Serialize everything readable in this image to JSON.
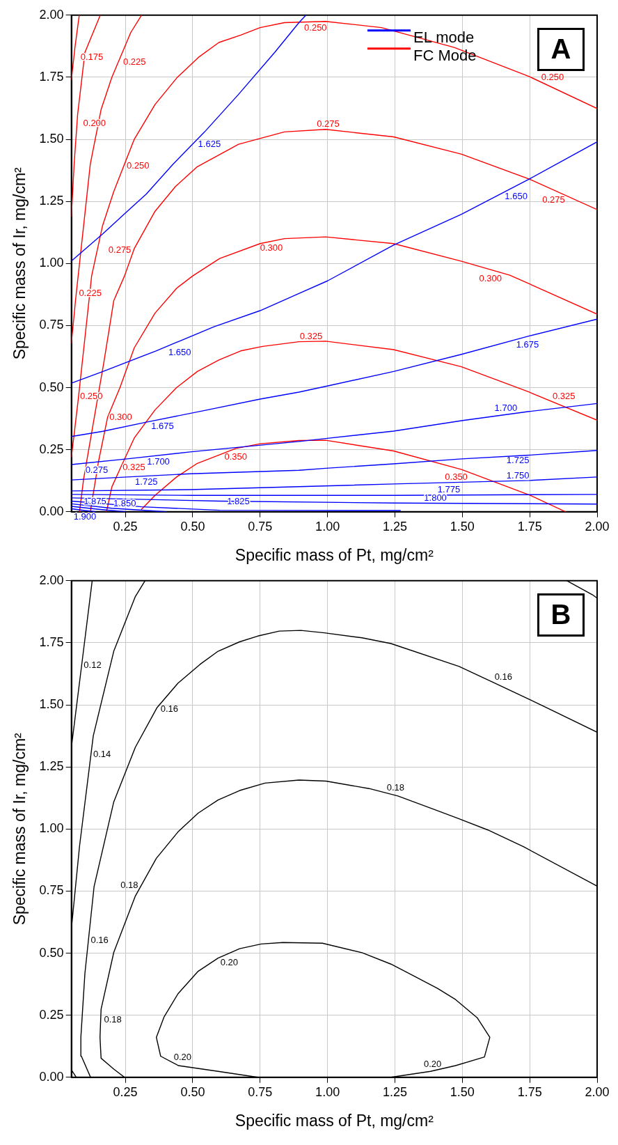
{
  "chart_data": [
    {
      "type": "line",
      "xlabel": "Specific mass of Pt, mg/cm²",
      "ylabel": "Specific mass of Ir, mg/cm²",
      "xlim": [
        0.05,
        2.0
      ],
      "ylim": [
        0,
        2.0
      ],
      "xticks": [
        {
          "value": 0.25,
          "label": "0.25"
        },
        {
          "value": 0.5,
          "label": "0.50"
        },
        {
          "value": 0.75,
          "label": "0.75"
        },
        {
          "value": 1.0,
          "label": "1.00"
        },
        {
          "value": 1.25,
          "label": "1.25"
        },
        {
          "value": 1.5,
          "label": "1.50"
        },
        {
          "value": 1.75,
          "label": "1.75"
        },
        {
          "value": 2.0,
          "label": "2.00"
        }
      ],
      "yticks": [
        {
          "value": 0,
          "label": "0.00"
        },
        {
          "value": 0.25,
          "label": "0.25"
        },
        {
          "value": 0.5,
          "label": "0.50"
        },
        {
          "value": 0.75,
          "label": "0.75"
        },
        {
          "value": 1.0,
          "label": "1.00"
        },
        {
          "value": 1.25,
          "label": "1.25"
        },
        {
          "value": 1.5,
          "label": "1.50"
        },
        {
          "value": 1.75,
          "label": "1.75"
        },
        {
          "value": 2.0,
          "label": "2.00"
        }
      ],
      "grid": true,
      "legend": "top right",
      "marker": "none",
      "series": [
        {
          "name": "EL mode",
          "color": "#0000ff",
          "x": [
            0.05,
            0.167,
            0.247,
            0.328,
            0.427,
            0.544,
            0.669,
            0.804,
            0.894,
            0.92,
            null,
            0.05,
            0.167,
            0.364,
            0.579,
            0.75,
            0.894,
            1.0,
            1.245,
            1.497,
            1.748,
            2.0,
            null,
            0.05,
            0.167,
            0.328,
            0.544,
            0.75,
            0.894,
            0.993,
            1.245,
            1.497,
            1.748,
            2.0,
            null,
            0.05,
            0.256,
            0.49,
            0.894,
            0.993,
            1.245,
            1.497,
            1.748,
            2.0,
            null,
            0.05,
            0.256,
            0.49,
            0.894,
            0.993,
            1.245,
            1.497,
            1.748,
            2.0,
            null,
            0.05,
            0.49,
            0.894,
            1.245,
            1.748,
            2.0,
            null,
            0.05,
            0.5,
            1.25,
            2.0,
            null,
            0.05,
            0.6,
            1.25,
            2.0,
            null,
            0.05,
            0.31,
            0.6,
            1.27,
            null,
            0.05,
            0.2,
            0.4,
            null,
            0.05,
            0.15,
            0.25,
            null,
            0.05,
            0.1,
            0.14
          ],
          "values": [
            1.01,
            1.12,
            1.2,
            1.28,
            1.4,
            1.53,
            1.68,
            1.85,
            1.97,
            2.0,
            null,
            0.518,
            0.565,
            0.648,
            0.745,
            0.81,
            0.879,
            0.93,
            1.074,
            1.198,
            1.34,
            1.49,
            null,
            0.303,
            0.324,
            0.361,
            0.408,
            0.454,
            0.482,
            0.505,
            0.565,
            0.634,
            0.708,
            0.776,
            null,
            0.19,
            0.213,
            0.241,
            0.283,
            0.295,
            0.325,
            0.367,
            0.404,
            0.436,
            null,
            0.128,
            0.14,
            0.153,
            0.167,
            0.175,
            0.193,
            0.213,
            0.228,
            0.247,
            null,
            0.084,
            0.089,
            0.101,
            0.112,
            0.126,
            0.14,
            null,
            0.07,
            0.066,
            0.066,
            0.07,
            null,
            0.056,
            0.043,
            0.035,
            0.031,
            null,
            0.043,
            0.02,
            0.006,
            0.005,
            null,
            0.032,
            0.014,
            0,
            null,
            0.022,
            0.01,
            0,
            null,
            0.012,
            0.005,
            0
          ]
        },
        {
          "name": "FC Mode",
          "color": "#ff0000",
          "x": [
            0.05,
            0.063,
            0.079,
            null,
            0.05,
            0.06,
            0.073,
            0.1,
            0.157,
            null,
            0.05,
            0.065,
            0.09,
            0.12,
            0.16,
            0.2,
            0.27,
            0.31,
            null,
            0.05,
            0.075,
            0.1,
            0.125,
            0.165,
            0.207,
            0.283,
            0.36,
            0.443,
            0.521,
            0.597,
            0.678,
            0.75,
            0.84,
            0.993,
            1.2,
            1.47,
            1.748,
            2.0,
            null,
            0.08,
            0.095,
            0.13,
            0.17,
            0.207,
            0.247,
            0.283,
            0.36,
            0.436,
            0.517,
            0.67,
            0.84,
            0.993,
            1.245,
            1.497,
            1.748,
            2.0,
            null,
            0.12,
            0.15,
            0.184,
            0.23,
            0.283,
            0.36,
            0.44,
            0.5,
            0.6,
            0.75,
            0.84,
            0.993,
            1.245,
            1.497,
            1.676,
            2.0,
            null,
            0.18,
            0.2,
            0.232,
            0.283,
            0.36,
            0.44,
            0.517,
            0.597,
            0.678,
            0.759,
            0.894,
            0.993,
            1.245,
            1.497,
            1.748,
            2.0,
            null,
            0.31,
            0.36,
            0.44,
            0.517,
            0.66,
            0.75,
            0.894,
            0.993,
            1.245,
            1.497,
            1.748,
            1.883
          ],
          "values": [
            1.74,
            1.87,
            2.0,
            null,
            1.19,
            1.4,
            1.6,
            1.85,
            2.0,
            null,
            0.68,
            0.85,
            1.1,
            1.4,
            1.62,
            1.75,
            1.93,
            2.0,
            null,
            0.22,
            0.45,
            0.7,
            0.95,
            1.15,
            1.29,
            1.5,
            1.64,
            1.75,
            1.83,
            1.89,
            1.92,
            1.95,
            1.97,
            1.975,
            1.95,
            1.87,
            1.753,
            1.624,
            null,
            0,
            0.13,
            0.35,
            0.6,
            0.85,
            0.95,
            1.06,
            1.21,
            1.31,
            1.39,
            1.48,
            1.53,
            1.54,
            1.51,
            1.44,
            1.34,
            1.217,
            null,
            0,
            0.2,
            0.38,
            0.5,
            0.66,
            0.8,
            0.9,
            0.95,
            1.02,
            1.08,
            1.1,
            1.107,
            1.08,
            1.009,
            0.953,
            0.796,
            null,
            0,
            0.1,
            0.177,
            0.297,
            0.41,
            0.5,
            0.565,
            0.611,
            0.648,
            0.666,
            0.685,
            0.687,
            0.653,
            0.584,
            0.482,
            0.369,
            null,
            0.01,
            0.066,
            0.14,
            0.195,
            0.255,
            0.274,
            0.287,
            0.288,
            0.245,
            0.17,
            0.068,
            0
          ]
        }
      ],
      "annotations": [
        "A",
        {
          "text": "0.175",
          "x": 0.063,
          "y": 1.866
        },
        {
          "text": "0.200",
          "x": 0.073,
          "y": 1.6
        },
        {
          "text": "0.225",
          "x": 0.234,
          "y": 1.81
        },
        {
          "text": "0.225",
          "x": 0.07,
          "y": 0.879
        },
        {
          "text": "0.250",
          "x": 0.903,
          "y": 1.973
        },
        {
          "text": "0.250",
          "x": 0.247,
          "y": 1.392
        },
        {
          "text": "0.250",
          "x": 1.79,
          "y": 1.733
        },
        {
          "text": "0.250",
          "x": 0.074,
          "y": 0.463
        },
        {
          "text": "0.275",
          "x": 1.002,
          "y": 1.541
        },
        {
          "text": "0.275",
          "x": 0.279,
          "y": 1.052
        },
        {
          "text": "0.275",
          "x": 1.883,
          "y": 1.272
        },
        {
          "text": "0.275",
          "x": 0.081,
          "y": 0.13
        },
        {
          "text": "0.300",
          "x": 0.747,
          "y": 1.078
        },
        {
          "text": "0.300",
          "x": 1.649,
          "y": 0.956
        },
        {
          "text": "0.300",
          "x": 0.183,
          "y": 0.38
        },
        {
          "text": "0.325",
          "x": 0.939,
          "y": 0.685
        },
        {
          "text": "0.325",
          "x": 1.832,
          "y": 0.447
        },
        {
          "text": "0.325",
          "x": 0.232,
          "y": 0.177
        },
        {
          "text": "0.350",
          "x": 0.615,
          "y": 0.237
        },
        {
          "text": "0.350",
          "x": 1.522,
          "y": 0.154
        },
        {
          "text": "1.625",
          "x": 0.512,
          "y": 1.478
        },
        {
          "text": "1.650",
          "x": 0.407,
          "y": 0.657
        },
        {
          "text": "1.650",
          "x": 1.655,
          "y": 1.286
        },
        {
          "text": "1.675",
          "x": 0.343,
          "y": 0.359
        },
        {
          "text": "1.675",
          "x": 1.697,
          "y": 0.687
        },
        {
          "text": "1.700",
          "x": 0.328,
          "y": 0.216
        },
        {
          "text": "1.700",
          "x": 1.706,
          "y": 0.398
        },
        {
          "text": "1.725",
          "x": 0.328,
          "y": 0.138
        },
        {
          "text": "1.725",
          "x": 1.706,
          "y": 0.225
        },
        {
          "text": "1.750",
          "x": 1.706,
          "y": 0.125
        },
        {
          "text": "1.775",
          "x": 1.45,
          "y": 0.067
        },
        {
          "text": "1.800",
          "x": 1.4,
          "y": 0.034
        },
        {
          "text": "1.825",
          "x": 0.669,
          "y": 0.021
        },
        {
          "text": "1.850",
          "x": 0.3,
          "y": 0.007
        },
        {
          "text": "1.875",
          "x": 0.2,
          "y": 0.005
        },
        {
          "text": "1.900",
          "x": 0.1,
          "y": 0.005
        }
      ]
    },
    {
      "type": "line",
      "xlabel": "Specific mass of Pt, mg/cm²",
      "ylabel": "Specific mass of Ir, mg/cm²",
      "xlim": [
        0.05,
        2.0
      ],
      "ylim": [
        0,
        2.0
      ],
      "xticks": [
        {
          "value": 0.25,
          "label": "0.25"
        },
        {
          "value": 0.5,
          "label": "0.50"
        },
        {
          "value": 0.75,
          "label": "0.75"
        },
        {
          "value": 1.0,
          "label": "1.00"
        },
        {
          "value": 1.25,
          "label": "1.25"
        },
        {
          "value": 1.5,
          "label": "1.50"
        },
        {
          "value": 1.75,
          "label": "1.75"
        },
        {
          "value": 2.0,
          "label": "2.00"
        }
      ],
      "yticks": [
        {
          "value": 0,
          "label": "0.00"
        },
        {
          "value": 0.25,
          "label": "0.25"
        },
        {
          "value": 0.5,
          "label": "0.50"
        },
        {
          "value": 0.75,
          "label": "0.75"
        },
        {
          "value": 1.0,
          "label": "1.00"
        },
        {
          "value": 1.25,
          "label": "1.25"
        },
        {
          "value": 1.5,
          "label": "1.50"
        },
        {
          "value": 1.75,
          "label": "1.75"
        },
        {
          "value": 2.0,
          "label": "2.00"
        }
      ],
      "grid": true,
      "marker": "none",
      "series": [
        {
          "color": "#000000",
          "x": [
            0.05,
            0.088,
            0.127,
            null,
            0.05,
            0.08,
            0.131,
            0.207,
            0.287,
            0.323,
            null,
            0.05,
            0.068,
            null,
            1.888,
            1.982,
            2.0,
            null,
            0.121,
            0.087,
            0.085,
            0.1,
            0.134,
            0.207,
            0.287,
            0.367,
            0.445,
            0.527,
            0.594,
            0.674,
            0.741,
            0.821,
            0.901,
            0.988,
            1.128,
            1.235,
            1.488,
            1.622,
            1.755,
            2.0,
            null,
            0.247,
            0.207,
            0.16,
            0.156,
            0.16,
            0.207,
            0.287,
            0.365,
            0.445,
            0.52,
            0.594,
            0.674,
            0.768,
            0.894,
            0.994,
            1.154,
            1.261,
            1.395,
            1.488,
            1.595,
            1.728,
            2.0,
            null,
            0.741,
            0.594,
            0.447,
            0.381,
            0.365,
            0.394,
            0.445,
            0.52,
            0.594,
            0.674,
            0.754,
            0.834,
            0.981,
            1.128,
            1.235,
            1.328,
            1.408,
            1.475,
            1.555,
            1.602,
            1.582,
            1.475,
            1.382,
            1.235
          ],
          "values": [
            1.33,
            1.66,
            2.0,
            null,
            0.6,
            0.93,
            1.375,
            1.716,
            1.936,
            2.0,
            null,
            0.03,
            0,
            null,
            2.0,
            1.944,
            1.93,
            null,
            0,
            0.085,
            0.161,
            0.418,
            0.768,
            1.109,
            1.329,
            1.488,
            1.587,
            1.663,
            1.716,
            1.754,
            1.777,
            1.797,
            1.8,
            1.79,
            1.77,
            1.747,
            1.655,
            1.587,
            1.519,
            1.39,
            null,
            0,
            0.033,
            0.077,
            0.161,
            0.274,
            0.503,
            0.73,
            0.882,
            0.988,
            1.064,
            1.117,
            1.155,
            1.185,
            1.197,
            1.193,
            1.163,
            1.133,
            1.079,
            1.041,
            0.996,
            0.928,
            0.77,
            null,
            0,
            0.024,
            0.047,
            0.085,
            0.161,
            0.244,
            0.336,
            0.427,
            0.48,
            0.518,
            0.537,
            0.543,
            0.54,
            0.502,
            0.456,
            0.404,
            0.358,
            0.313,
            0.24,
            0.161,
            0.082,
            0.047,
            0.024,
            0
          ]
        }
      ],
      "annotations": [
        "B",
        {
          "text": "0.12",
          "x": 0.088,
          "y": 1.66
        },
        {
          "text": "0.14",
          "x": 0.123,
          "y": 1.3
        },
        {
          "text": "0.16",
          "x": 0.378,
          "y": 1.5
        },
        {
          "text": "0.16",
          "x": 0.114,
          "y": 0.552
        },
        {
          "text": "0.16",
          "x": 1.617,
          "y": 1.593
        },
        {
          "text": "0.18",
          "x": 0.3,
          "y": 0.757
        },
        {
          "text": "0.18",
          "x": 0.163,
          "y": 0.23
        },
        {
          "text": "0.18",
          "x": 1.217,
          "y": 1.147
        },
        {
          "text": "0.20",
          "x": 0.6,
          "y": 0.477
        },
        {
          "text": "0.20",
          "x": 0.427,
          "y": 0.063
        },
        {
          "text": "0.20",
          "x": 1.425,
          "y": 0.036
        }
      ]
    }
  ]
}
